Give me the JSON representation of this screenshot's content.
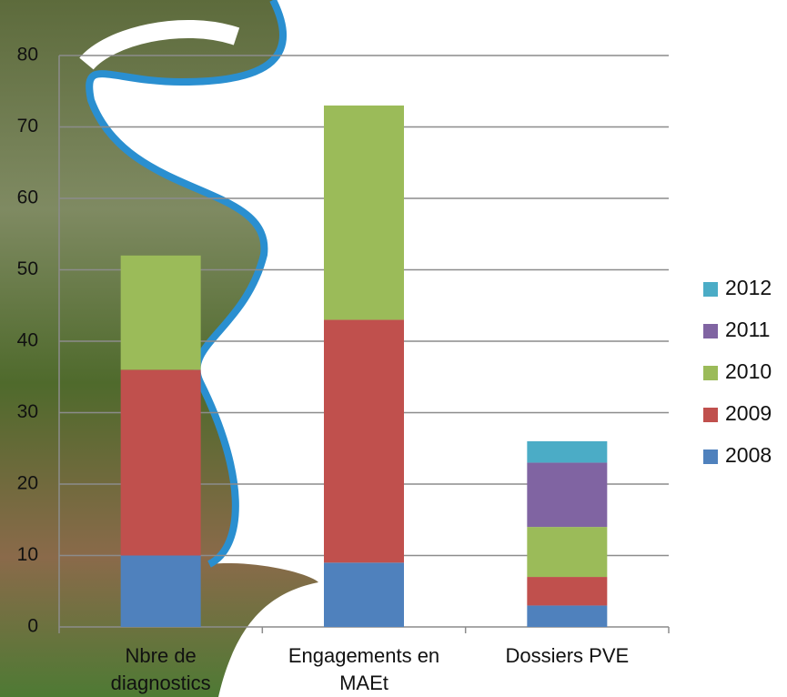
{
  "chart_data": {
    "type": "stacked_bar",
    "categories": [
      "Nbre de diagnostics",
      "Engagements en MAEt",
      "Dossiers PVE"
    ],
    "series": [
      {
        "name": "2008",
        "color": "#4f81bd",
        "values": [
          10,
          9,
          3
        ]
      },
      {
        "name": "2009",
        "color": "#c0504d",
        "values": [
          26,
          34,
          4
        ]
      },
      {
        "name": "2010",
        "color": "#9bbb59",
        "values": [
          16,
          30,
          7
        ]
      },
      {
        "name": "2011",
        "color": "#8064a2",
        "values": [
          0,
          0,
          9
        ]
      },
      {
        "name": "2012",
        "color": "#4bacc6",
        "values": [
          0,
          0,
          3
        ]
      }
    ],
    "ylim": [
      0,
      80
    ],
    "yticks": [
      0,
      10,
      20,
      30,
      40,
      50,
      60,
      70,
      80
    ],
    "grid": true,
    "legend": "right"
  }
}
